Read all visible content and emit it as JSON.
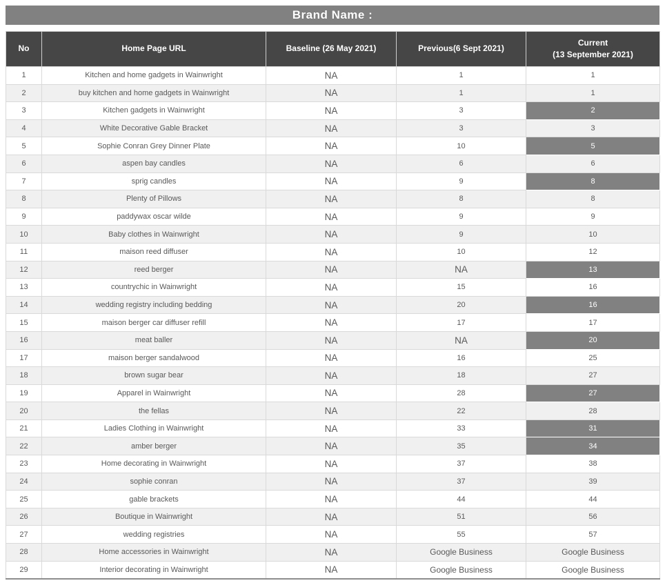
{
  "title_bar": {
    "label": "Brand Name :"
  },
  "colors": {
    "title_bar_bg": "#818181",
    "header_bg": "#464646",
    "highlight_bg": "#818181",
    "stripe_bg": "#f0f0f0",
    "body_text": "#595959"
  },
  "table": {
    "columns": {
      "no": "No",
      "url": "Home Page URL",
      "baseline": "Baseline (26 May 2021)",
      "previous": "Previous(6 Sept 2021)",
      "current_line1": "Current",
      "current_line2": "(13 September 2021)"
    },
    "rows": [
      {
        "no": "1",
        "url": "Kitchen and home gadgets in Wainwright",
        "baseline": "NA",
        "previous": "1",
        "current": "1",
        "highlight": false
      },
      {
        "no": "2",
        "url": "buy kitchen and home gadgets in Wainwright",
        "baseline": "NA",
        "previous": "1",
        "current": "1",
        "highlight": false
      },
      {
        "no": "3",
        "url": "Kitchen gadgets in Wainwright",
        "baseline": "NA",
        "previous": "3",
        "current": "2",
        "highlight": true
      },
      {
        "no": "4",
        "url": "White Decorative Gable Bracket",
        "baseline": "NA",
        "previous": "3",
        "current": "3",
        "highlight": false
      },
      {
        "no": "5",
        "url": "Sophie Conran Grey Dinner Plate",
        "baseline": "NA",
        "previous": "10",
        "current": "5",
        "highlight": true
      },
      {
        "no": "6",
        "url": "aspen bay candles",
        "baseline": "NA",
        "previous": "6",
        "current": "6",
        "highlight": false
      },
      {
        "no": "7",
        "url": "sprig candles",
        "baseline": "NA",
        "previous": "9",
        "current": "8",
        "highlight": true
      },
      {
        "no": "8",
        "url": "Plenty of Pillows",
        "baseline": "NA",
        "previous": "8",
        "current": "8",
        "highlight": false
      },
      {
        "no": "9",
        "url": "paddywax oscar wilde",
        "baseline": "NA",
        "previous": "9",
        "current": "9",
        "highlight": false
      },
      {
        "no": "10",
        "url": "Baby clothes in Wainwright",
        "baseline": "NA",
        "previous": "9",
        "current": "10",
        "highlight": false
      },
      {
        "no": "11",
        "url": "maison reed diffuser",
        "baseline": "NA",
        "previous": "10",
        "current": "12",
        "highlight": false
      },
      {
        "no": "12",
        "url": "reed berger",
        "baseline": "NA",
        "previous": "NA",
        "current": "13",
        "highlight": true
      },
      {
        "no": "13",
        "url": "countrychic in Wainwright",
        "baseline": "NA",
        "previous": "15",
        "current": "16",
        "highlight": false
      },
      {
        "no": "14",
        "url": "wedding registry including bedding",
        "baseline": "NA",
        "previous": "20",
        "current": "16",
        "highlight": true
      },
      {
        "no": "15",
        "url": "maison berger car diffuser refill",
        "baseline": "NA",
        "previous": "17",
        "current": "17",
        "highlight": false
      },
      {
        "no": "16",
        "url": "meat baller",
        "baseline": "NA",
        "previous": "NA",
        "current": "20",
        "highlight": true
      },
      {
        "no": "17",
        "url": "maison berger sandalwood",
        "baseline": "NA",
        "previous": "16",
        "current": "25",
        "highlight": false
      },
      {
        "no": "18",
        "url": "brown sugar bear",
        "baseline": "NA",
        "previous": "18",
        "current": "27",
        "highlight": false
      },
      {
        "no": "19",
        "url": "Apparel in Wainwright",
        "baseline": "NA",
        "previous": "28",
        "current": "27",
        "highlight": true
      },
      {
        "no": "20",
        "url": "the fellas",
        "baseline": "NA",
        "previous": "22",
        "current": "28",
        "highlight": false
      },
      {
        "no": "21",
        "url": "Ladies Clothing in Wainwright",
        "baseline": "NA",
        "previous": "33",
        "current": "31",
        "highlight": true
      },
      {
        "no": "22",
        "url": "amber berger",
        "baseline": "NA",
        "previous": "35",
        "current": "34",
        "highlight": true
      },
      {
        "no": "23",
        "url": "Home decorating in Wainwright",
        "baseline": "NA",
        "previous": "37",
        "current": "38",
        "highlight": false
      },
      {
        "no": "24",
        "url": "sophie conran",
        "baseline": "NA",
        "previous": "37",
        "current": "39",
        "highlight": false
      },
      {
        "no": "25",
        "url": "gable brackets",
        "baseline": "NA",
        "previous": "44",
        "current": "44",
        "highlight": false
      },
      {
        "no": "26",
        "url": "Boutique in Wainwright",
        "baseline": "NA",
        "previous": "51",
        "current": "56",
        "highlight": false
      },
      {
        "no": "27",
        "url": "wedding registries",
        "baseline": "NA",
        "previous": "55",
        "current": "57",
        "highlight": false
      },
      {
        "no": "28",
        "url": "Home accessories in Wainwright",
        "baseline": "NA",
        "previous": "Google Business",
        "current": "Google Business",
        "highlight": false
      },
      {
        "no": "29",
        "url": "Interior decorating in Wainwright",
        "baseline": "NA",
        "previous": "Google Business",
        "current": "Google Business",
        "highlight": false
      }
    ]
  }
}
